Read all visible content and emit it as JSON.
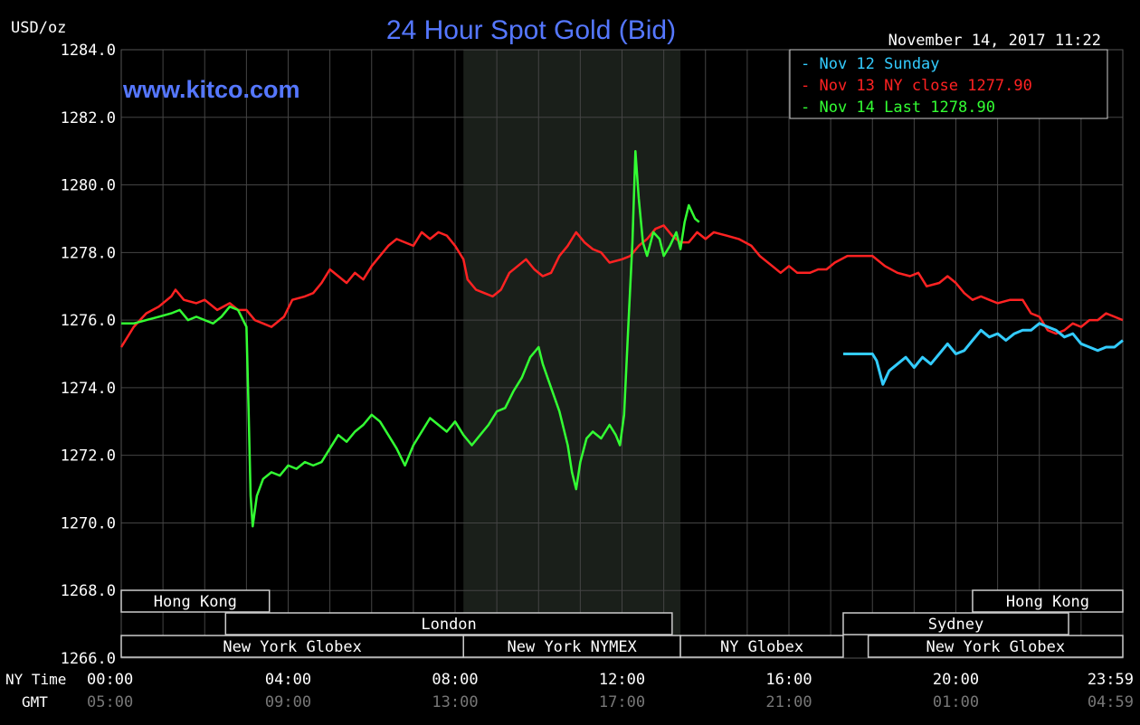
{
  "chart_data": {
    "type": "line",
    "title": "24 Hour Spot Gold (Bid)",
    "watermark": "www.kitco.com",
    "timestamp": "November 14, 2017 11:22",
    "ylabel": "USD/oz",
    "ylim": [
      1266,
      1284
    ],
    "y_ticks": [
      "1266.0",
      "1268.0",
      "1270.0",
      "1272.0",
      "1274.0",
      "1276.0",
      "1278.0",
      "1280.0",
      "1282.0",
      "1284.0"
    ],
    "x_range_hours": [
      0,
      24
    ],
    "x_ticks": [
      {
        "ny": "00:00",
        "gmt": "05:00",
        "h": 0
      },
      {
        "ny": "04:00",
        "gmt": "09:00",
        "h": 4
      },
      {
        "ny": "08:00",
        "gmt": "13:00",
        "h": 8
      },
      {
        "ny": "12:00",
        "gmt": "17:00",
        "h": 12
      },
      {
        "ny": "16:00",
        "gmt": "21:00",
        "h": 16
      },
      {
        "ny": "20:00",
        "gmt": "01:00",
        "h": 20
      },
      {
        "ny": "23:59",
        "gmt": "04:59",
        "h": 24
      }
    ],
    "row_labels": {
      "ny": "NY Time",
      "gmt": "GMT"
    },
    "grid": true,
    "legend_position": "top-right",
    "shaded_session_hours": [
      8.2,
      13.4
    ],
    "series": [
      {
        "name": "Nov 12 Sunday",
        "legend": "Nov 12 Sunday",
        "color": "#33ccff",
        "points": [
          [
            17.3,
            1275.0
          ],
          [
            17.6,
            1275.0
          ],
          [
            17.9,
            1275.0
          ],
          [
            18.0,
            1275.0
          ],
          [
            18.1,
            1274.8
          ],
          [
            18.25,
            1274.1
          ],
          [
            18.4,
            1274.5
          ],
          [
            18.6,
            1274.7
          ],
          [
            18.8,
            1274.9
          ],
          [
            19.0,
            1274.6
          ],
          [
            19.2,
            1274.9
          ],
          [
            19.4,
            1274.7
          ],
          [
            19.6,
            1275.0
          ],
          [
            19.8,
            1275.3
          ],
          [
            20.0,
            1275.0
          ],
          [
            20.2,
            1275.1
          ],
          [
            20.4,
            1275.4
          ],
          [
            20.6,
            1275.7
          ],
          [
            20.8,
            1275.5
          ],
          [
            21.0,
            1275.6
          ],
          [
            21.2,
            1275.4
          ],
          [
            21.4,
            1275.6
          ],
          [
            21.6,
            1275.7
          ],
          [
            21.8,
            1275.7
          ],
          [
            22.0,
            1275.9
          ],
          [
            22.2,
            1275.8
          ],
          [
            22.4,
            1275.7
          ],
          [
            22.6,
            1275.5
          ],
          [
            22.8,
            1275.6
          ],
          [
            23.0,
            1275.3
          ],
          [
            23.2,
            1275.2
          ],
          [
            23.4,
            1275.1
          ],
          [
            23.6,
            1275.2
          ],
          [
            23.8,
            1275.2
          ],
          [
            24.0,
            1275.4
          ]
        ]
      },
      {
        "name": "Nov 13 NY close",
        "legend": "Nov 13 NY close 1277.90",
        "color": "#ff2222",
        "points": [
          [
            0.0,
            1275.2
          ],
          [
            0.3,
            1275.8
          ],
          [
            0.6,
            1276.2
          ],
          [
            0.9,
            1276.4
          ],
          [
            1.2,
            1276.7
          ],
          [
            1.3,
            1276.9
          ],
          [
            1.5,
            1276.6
          ],
          [
            1.8,
            1276.5
          ],
          [
            2.0,
            1276.6
          ],
          [
            2.3,
            1276.3
          ],
          [
            2.6,
            1276.5
          ],
          [
            2.8,
            1276.3
          ],
          [
            3.0,
            1276.3
          ],
          [
            3.2,
            1276.0
          ],
          [
            3.4,
            1275.9
          ],
          [
            3.6,
            1275.8
          ],
          [
            3.9,
            1276.1
          ],
          [
            4.1,
            1276.6
          ],
          [
            4.4,
            1276.7
          ],
          [
            4.6,
            1276.8
          ],
          [
            4.8,
            1277.1
          ],
          [
            5.0,
            1277.5
          ],
          [
            5.2,
            1277.3
          ],
          [
            5.4,
            1277.1
          ],
          [
            5.6,
            1277.4
          ],
          [
            5.8,
            1277.2
          ],
          [
            6.0,
            1277.6
          ],
          [
            6.2,
            1277.9
          ],
          [
            6.4,
            1278.2
          ],
          [
            6.6,
            1278.4
          ],
          [
            6.8,
            1278.3
          ],
          [
            7.0,
            1278.2
          ],
          [
            7.2,
            1278.6
          ],
          [
            7.4,
            1278.4
          ],
          [
            7.6,
            1278.6
          ],
          [
            7.8,
            1278.5
          ],
          [
            8.0,
            1278.2
          ],
          [
            8.2,
            1277.8
          ],
          [
            8.3,
            1277.2
          ],
          [
            8.5,
            1276.9
          ],
          [
            8.7,
            1276.8
          ],
          [
            8.9,
            1276.7
          ],
          [
            9.1,
            1276.9
          ],
          [
            9.3,
            1277.4
          ],
          [
            9.5,
            1277.6
          ],
          [
            9.7,
            1277.8
          ],
          [
            9.9,
            1277.5
          ],
          [
            10.1,
            1277.3
          ],
          [
            10.3,
            1277.4
          ],
          [
            10.5,
            1277.9
          ],
          [
            10.7,
            1278.2
          ],
          [
            10.9,
            1278.6
          ],
          [
            11.1,
            1278.3
          ],
          [
            11.3,
            1278.1
          ],
          [
            11.5,
            1278.0
          ],
          [
            11.7,
            1277.7
          ],
          [
            12.0,
            1277.8
          ],
          [
            12.2,
            1277.9
          ],
          [
            12.4,
            1278.2
          ],
          [
            12.6,
            1278.4
          ],
          [
            12.8,
            1278.7
          ],
          [
            13.0,
            1278.8
          ],
          [
            13.2,
            1278.5
          ],
          [
            13.4,
            1278.3
          ],
          [
            13.6,
            1278.3
          ],
          [
            13.8,
            1278.6
          ],
          [
            14.0,
            1278.4
          ],
          [
            14.2,
            1278.6
          ],
          [
            14.5,
            1278.5
          ],
          [
            14.8,
            1278.4
          ],
          [
            15.1,
            1278.2
          ],
          [
            15.3,
            1277.9
          ],
          [
            15.6,
            1277.6
          ],
          [
            15.8,
            1277.4
          ],
          [
            16.0,
            1277.6
          ],
          [
            16.2,
            1277.4
          ],
          [
            16.5,
            1277.4
          ],
          [
            16.7,
            1277.5
          ],
          [
            16.9,
            1277.5
          ],
          [
            17.1,
            1277.7
          ],
          [
            17.4,
            1277.9
          ],
          [
            17.7,
            1277.9
          ],
          [
            18.0,
            1277.9
          ],
          [
            18.3,
            1277.6
          ],
          [
            18.6,
            1277.4
          ],
          [
            18.9,
            1277.3
          ],
          [
            19.1,
            1277.4
          ],
          [
            19.3,
            1277.0
          ],
          [
            19.6,
            1277.1
          ],
          [
            19.8,
            1277.3
          ],
          [
            20.0,
            1277.1
          ],
          [
            20.2,
            1276.8
          ],
          [
            20.4,
            1276.6
          ],
          [
            20.6,
            1276.7
          ],
          [
            20.8,
            1276.6
          ],
          [
            21.0,
            1276.5
          ],
          [
            21.3,
            1276.6
          ],
          [
            21.6,
            1276.6
          ],
          [
            21.8,
            1276.2
          ],
          [
            22.0,
            1276.1
          ],
          [
            22.2,
            1275.7
          ],
          [
            22.4,
            1275.6
          ],
          [
            22.6,
            1275.7
          ],
          [
            22.8,
            1275.9
          ],
          [
            23.0,
            1275.8
          ],
          [
            23.2,
            1276.0
          ],
          [
            23.4,
            1276.0
          ],
          [
            23.6,
            1276.2
          ],
          [
            23.8,
            1276.1
          ],
          [
            24.0,
            1276.0
          ]
        ]
      },
      {
        "name": "Nov 14 Last",
        "legend": "Nov 14 Last 1278.90",
        "color": "#33ff33",
        "points": [
          [
            0.0,
            1275.9
          ],
          [
            0.3,
            1275.9
          ],
          [
            0.6,
            1276.0
          ],
          [
            0.9,
            1276.1
          ],
          [
            1.2,
            1276.2
          ],
          [
            1.4,
            1276.3
          ],
          [
            1.6,
            1276.0
          ],
          [
            1.8,
            1276.1
          ],
          [
            2.0,
            1276.0
          ],
          [
            2.2,
            1275.9
          ],
          [
            2.4,
            1276.1
          ],
          [
            2.6,
            1276.4
          ],
          [
            2.8,
            1276.3
          ],
          [
            3.0,
            1275.8
          ],
          [
            3.05,
            1273.4
          ],
          [
            3.1,
            1270.8
          ],
          [
            3.15,
            1269.9
          ],
          [
            3.25,
            1270.8
          ],
          [
            3.4,
            1271.3
          ],
          [
            3.6,
            1271.5
          ],
          [
            3.8,
            1271.4
          ],
          [
            4.0,
            1271.7
          ],
          [
            4.2,
            1271.6
          ],
          [
            4.4,
            1271.8
          ],
          [
            4.6,
            1271.7
          ],
          [
            4.8,
            1271.8
          ],
          [
            5.0,
            1272.2
          ],
          [
            5.2,
            1272.6
          ],
          [
            5.4,
            1272.4
          ],
          [
            5.6,
            1272.7
          ],
          [
            5.8,
            1272.9
          ],
          [
            6.0,
            1273.2
          ],
          [
            6.2,
            1273.0
          ],
          [
            6.4,
            1272.6
          ],
          [
            6.6,
            1272.2
          ],
          [
            6.8,
            1271.7
          ],
          [
            7.0,
            1272.3
          ],
          [
            7.2,
            1272.7
          ],
          [
            7.4,
            1273.1
          ],
          [
            7.6,
            1272.9
          ],
          [
            7.8,
            1272.7
          ],
          [
            8.0,
            1273.0
          ],
          [
            8.2,
            1272.6
          ],
          [
            8.4,
            1272.3
          ],
          [
            8.6,
            1272.6
          ],
          [
            8.8,
            1272.9
          ],
          [
            9.0,
            1273.3
          ],
          [
            9.2,
            1273.4
          ],
          [
            9.4,
            1273.9
          ],
          [
            9.6,
            1274.3
          ],
          [
            9.8,
            1274.9
          ],
          [
            10.0,
            1275.2
          ],
          [
            10.1,
            1274.7
          ],
          [
            10.3,
            1274.0
          ],
          [
            10.5,
            1273.3
          ],
          [
            10.6,
            1272.8
          ],
          [
            10.7,
            1272.3
          ],
          [
            10.8,
            1271.5
          ],
          [
            10.9,
            1271.0
          ],
          [
            11.0,
            1271.8
          ],
          [
            11.15,
            1272.5
          ],
          [
            11.3,
            1272.7
          ],
          [
            11.5,
            1272.5
          ],
          [
            11.7,
            1272.9
          ],
          [
            11.85,
            1272.6
          ],
          [
            11.95,
            1272.3
          ],
          [
            12.05,
            1273.2
          ],
          [
            12.15,
            1275.8
          ],
          [
            12.25,
            1278.3
          ],
          [
            12.32,
            1281.0
          ],
          [
            12.4,
            1279.6
          ],
          [
            12.5,
            1278.3
          ],
          [
            12.6,
            1277.9
          ],
          [
            12.75,
            1278.6
          ],
          [
            12.9,
            1278.4
          ],
          [
            13.0,
            1277.9
          ],
          [
            13.15,
            1278.2
          ],
          [
            13.3,
            1278.6
          ],
          [
            13.4,
            1278.1
          ],
          [
            13.5,
            1278.9
          ],
          [
            13.6,
            1279.4
          ],
          [
            13.75,
            1279.0
          ],
          [
            13.85,
            1278.9
          ]
        ]
      }
    ],
    "sessions": [
      {
        "label": "Hong Kong",
        "row": 0,
        "start": 0,
        "end": 3.55
      },
      {
        "label": "Hong Kong",
        "row": 0,
        "start": 20.4,
        "end": 24
      },
      {
        "label": "London",
        "row": 1,
        "start": 2.5,
        "end": 13.2
      },
      {
        "label": "Sydney",
        "row": 1,
        "start": 17.3,
        "end": 22.7
      },
      {
        "label": "New York Globex",
        "row": 2,
        "start": 0,
        "end": 8.2
      },
      {
        "label": "New York NYMEX",
        "row": 2,
        "start": 8.2,
        "end": 13.4
      },
      {
        "label": "NY Globex",
        "row": 2,
        "start": 13.4,
        "end": 17.3
      },
      {
        "label": "New York Globex",
        "row": 2,
        "start": 17.9,
        "end": 24
      }
    ]
  }
}
